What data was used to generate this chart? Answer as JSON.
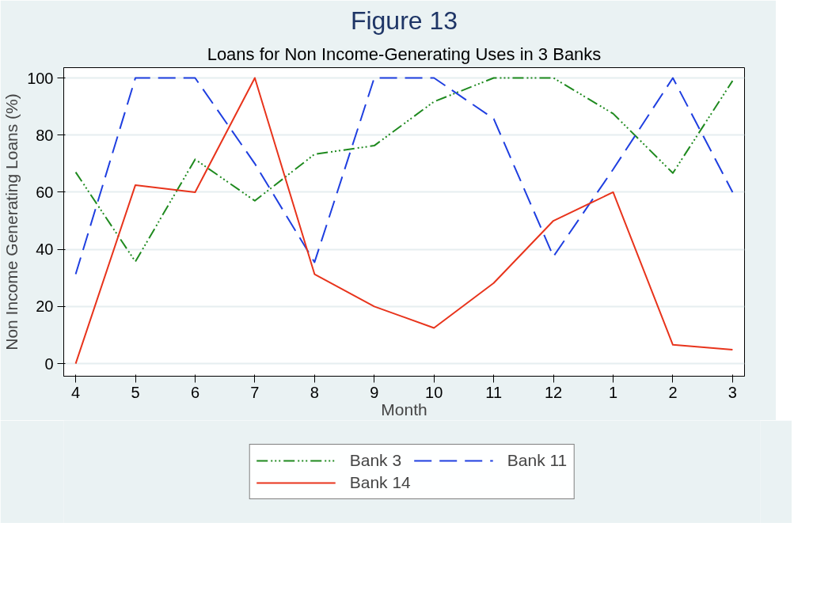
{
  "chart_data": {
    "type": "line",
    "title": "Figure 13",
    "subtitle": "Loans for Non Income-Generating Uses in 3 Banks",
    "xlabel": "Month",
    "ylabel": "Non Income Generating Loans (%)",
    "categories": [
      "4",
      "5",
      "6",
      "7",
      "8",
      "9",
      "10",
      "11",
      "12",
      "1",
      "2",
      "3"
    ],
    "series": [
      {
        "name": "Bank 3",
        "color": "#1f8a1f",
        "line_style": "dashdot",
        "values": [
          67,
          35.7,
          71.5,
          57,
          73.3,
          76.3,
          91.7,
          100,
          100,
          87.5,
          66.7,
          99
        ]
      },
      {
        "name": "Bank 11",
        "color": "#1f3fe0",
        "line_style": "dashed",
        "values": [
          31.3,
          100,
          100,
          70,
          35.5,
          100,
          100,
          85.7,
          37.5,
          68,
          100,
          60
        ]
      },
      {
        "name": "Bank 14",
        "color": "#e8341c",
        "line_style": "solid",
        "values": [
          0,
          62.5,
          60,
          100,
          31.3,
          20,
          12.5,
          28.2,
          50,
          60,
          6.6,
          4.9
        ]
      }
    ],
    "ylim": [
      -4.4,
      103.6
    ],
    "yticks": [
      0,
      20,
      40,
      60,
      80,
      100
    ],
    "grid": "y",
    "legend": "bottom",
    "marker": "none"
  }
}
